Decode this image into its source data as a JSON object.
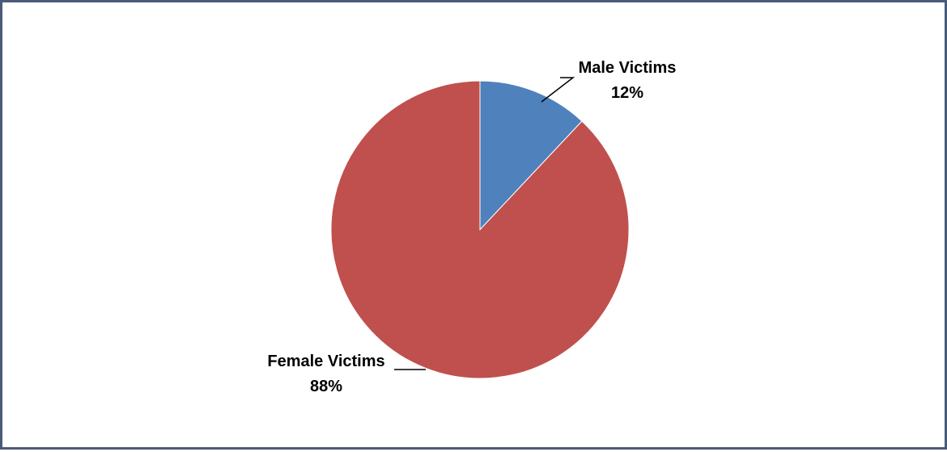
{
  "chart_data": {
    "type": "pie",
    "title": "",
    "slices": [
      {
        "name": "Male Victims",
        "value": 12,
        "label": "12%",
        "color": "#4f81bd"
      },
      {
        "name": "Female Victims",
        "value": 88,
        "label": "88%",
        "color": "#c0504d"
      }
    ],
    "legend": "none",
    "data_labels": "outside with leader lines"
  }
}
